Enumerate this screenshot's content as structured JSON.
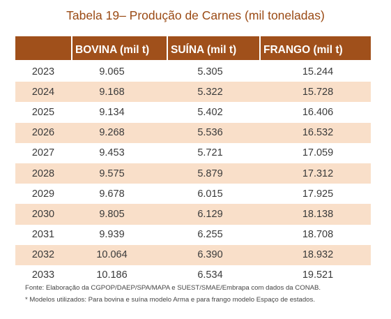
{
  "title": "Tabela 19– Produção de Carnes (mil toneladas)",
  "columns": [
    "",
    "BOVINA (mil t)",
    "SUÍNA (mil t)",
    "FRANGO (mil t)"
  ],
  "rows": [
    [
      "2023",
      "9.065",
      "5.305",
      "15.244"
    ],
    [
      "2024",
      "9.168",
      "5.322",
      "15.728"
    ],
    [
      "2025",
      "9.134",
      "5.402",
      "16.406"
    ],
    [
      "2026",
      "9.268",
      "5.536",
      "16.532"
    ],
    [
      "2027",
      "9.453",
      "5.721",
      "17.059"
    ],
    [
      "2028",
      "9.575",
      "5.879",
      "17.312"
    ],
    [
      "2029",
      "9.678",
      "6.015",
      "17.925"
    ],
    [
      "2030",
      "9.805",
      "6.129",
      "18.138"
    ],
    [
      "2031",
      "9.939",
      "6.255",
      "18.708"
    ],
    [
      "2032",
      "10.064",
      "6.390",
      "18.932"
    ],
    [
      "2033",
      "10.186",
      "6.534",
      "19.521"
    ]
  ],
  "notes": {
    "source": "Fonte: Elaboração da CGPOP/DAEP/SPA/MAPA e SUEST/SMAE/Embrapa com dados da CONAB.",
    "models": "* Modelos utilizados: Para bovina e suína modelo Arma e para frango modelo Espaço de estados."
  },
  "colors": {
    "title": "#9a4a14",
    "header_bg": "#a0501b",
    "header_text": "#ffffff",
    "stripe_bg": "#f9dfc9"
  }
}
